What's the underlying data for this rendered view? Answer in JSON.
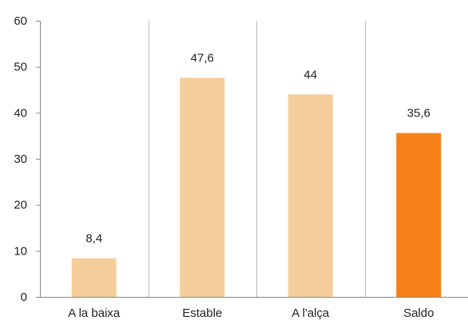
{
  "chart_data": {
    "type": "bar",
    "categories": [
      "A la baixa",
      "Estable",
      "A l'alça",
      "Saldo"
    ],
    "values": [
      8.4,
      47.6,
      44,
      35.6
    ],
    "data_labels": [
      "8,4",
      "47,6",
      "44",
      "35,6"
    ],
    "ylim": [
      0,
      60
    ],
    "yticks": [
      0,
      10,
      20,
      30,
      40,
      50,
      60
    ],
    "title": "",
    "xlabel": "",
    "ylabel": "",
    "grid": "vertical category separators",
    "legend": "none",
    "colors": {
      "default_bar": "#F5CE9C",
      "highlight_bar": "#F77F17",
      "axis": "#888888",
      "separator": "#BBBBBB"
    },
    "highlight_index": 3
  }
}
